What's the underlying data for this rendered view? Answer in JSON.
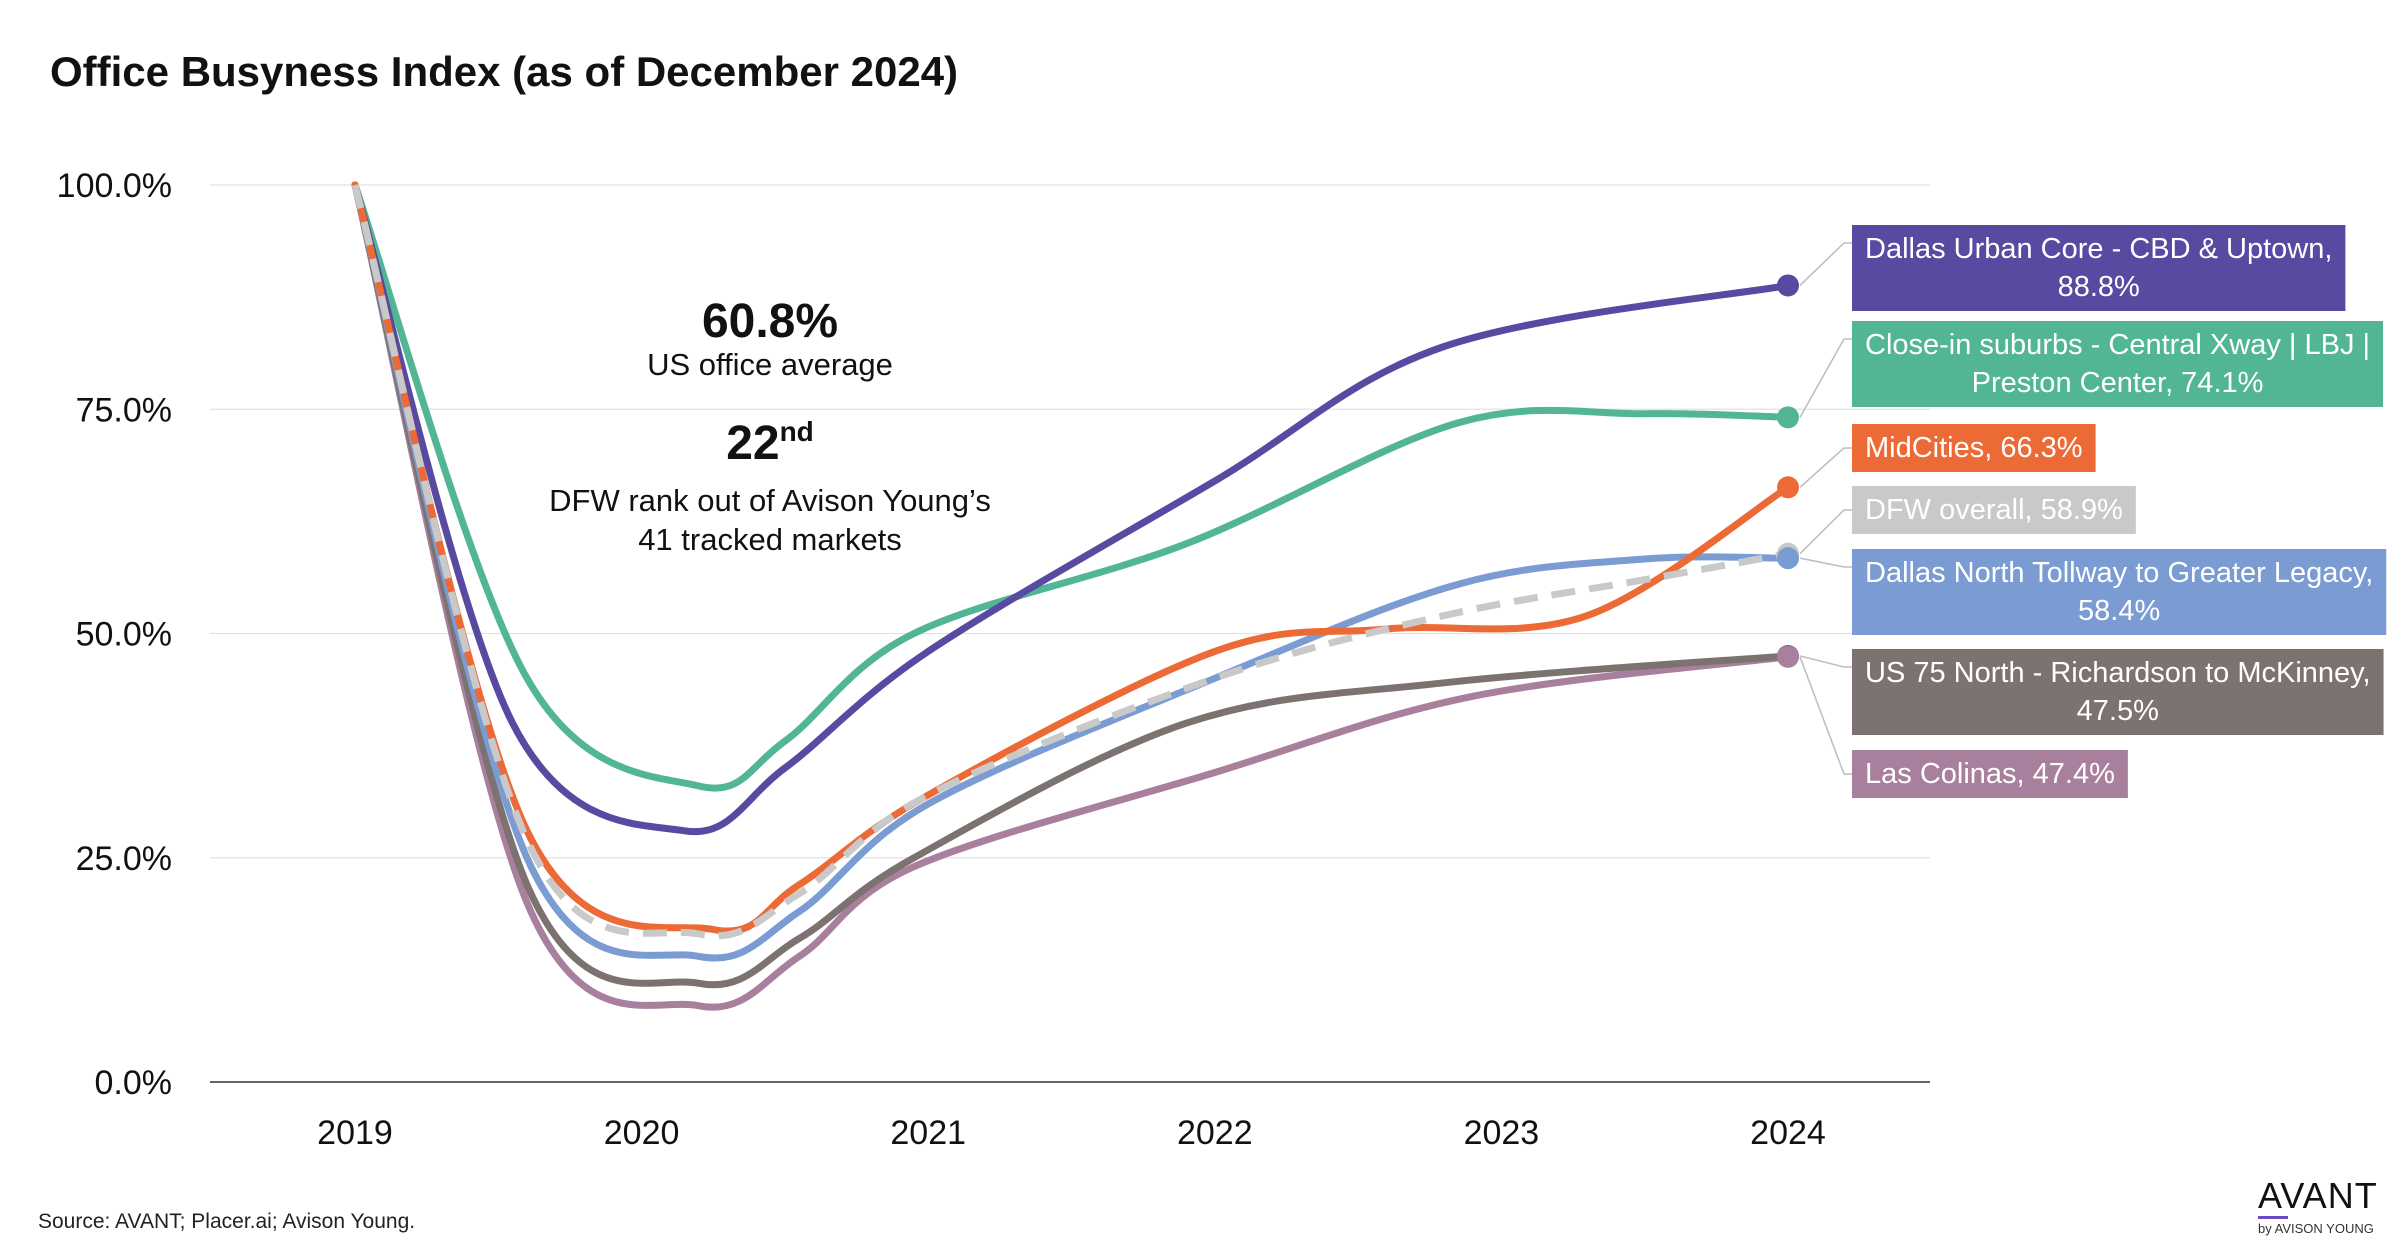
{
  "title": "Office Busyness Index (as of December 2024)",
  "source": "Source: AVANT; Placer.ai; Avison Young.",
  "annotation": {
    "us_value": "60.8%",
    "us_label": "US office average",
    "rank_value": "22",
    "rank_suffix": "nd",
    "rank_label_1": "DFW rank out of Avison Young’s",
    "rank_label_2": "41 tracked markets"
  },
  "logo": {
    "main": "AVANT",
    "sub": "by AVISON YOUNG"
  },
  "chart_data": {
    "type": "line",
    "title": "Office Busyness Index (as of December 2024)",
    "xlabel": "",
    "ylabel": "",
    "categories": [
      "2019",
      "2020",
      "2021",
      "2022",
      "2023",
      "2024"
    ],
    "x_range": [
      2019,
      2024
    ],
    "ylim": [
      0,
      100
    ],
    "y_ticks": [
      0,
      25,
      50,
      75,
      100
    ],
    "y_tick_labels": [
      "0.0%",
      "25.0%",
      "50.0%",
      "75.0%",
      "100.0%"
    ],
    "grid": true,
    "series": [
      {
        "name": "Dallas Urban Core - CBD & Uptown",
        "label_lines": [
          "Dallas Urban Core - CBD & Uptown,",
          "88.8%"
        ],
        "color": "#574aa0",
        "dashed": false,
        "end_value": 88.8,
        "points": [
          [
            2019,
            100
          ],
          [
            2019.55,
            40
          ],
          [
            2020.15,
            28
          ],
          [
            2020.5,
            35
          ],
          [
            2021,
            48
          ],
          [
            2022,
            67
          ],
          [
            2022.8,
            82
          ],
          [
            2024,
            88.8
          ]
        ]
      },
      {
        "name": "Close-in suburbs - Central Xway | LBJ | Preston Center",
        "label_lines": [
          "Close-in suburbs - Central Xway | LBJ |",
          "Preston Center, 74.1%"
        ],
        "color": "#52b596",
        "dashed": false,
        "end_value": 74.1,
        "points": [
          [
            2019,
            100
          ],
          [
            2019.6,
            45
          ],
          [
            2020.2,
            33
          ],
          [
            2020.5,
            38
          ],
          [
            2020.95,
            50
          ],
          [
            2021.9,
            60
          ],
          [
            2022.85,
            73.5
          ],
          [
            2023.5,
            74.5
          ],
          [
            2024,
            74.1
          ]
        ]
      },
      {
        "name": "MidCities",
        "label_lines": [
          "MidCities, 66.3%"
        ],
        "color": "#ec6a36",
        "dashed": false,
        "end_value": 66.3,
        "points": [
          [
            2019,
            100
          ],
          [
            2019.6,
            28
          ],
          [
            2020.25,
            17
          ],
          [
            2020.55,
            22
          ],
          [
            2021,
            32
          ],
          [
            2022,
            48
          ],
          [
            2022.6,
            50.5
          ],
          [
            2023.3,
            52
          ],
          [
            2024,
            66.3
          ]
        ]
      },
      {
        "name": "DFW overall",
        "label_lines": [
          "DFW overall, 58.9%"
        ],
        "color": "#c9c9c9",
        "dashed": true,
        "end_value": 58.9,
        "points": [
          [
            2019,
            100
          ],
          [
            2019.6,
            27
          ],
          [
            2020.2,
            16.5
          ],
          [
            2020.55,
            21
          ],
          [
            2021,
            32
          ],
          [
            2022,
            45
          ],
          [
            2022.8,
            52
          ],
          [
            2023.5,
            56
          ],
          [
            2024,
            58.9
          ]
        ]
      },
      {
        "name": "Dallas North Tollway to Greater Legacy",
        "label_lines": [
          "Dallas North Tollway to Greater Legacy,",
          "58.4%"
        ],
        "color": "#7b9bd3",
        "dashed": false,
        "end_value": 58.4,
        "points": [
          [
            2019,
            100
          ],
          [
            2019.6,
            25
          ],
          [
            2020.2,
            14
          ],
          [
            2020.55,
            19
          ],
          [
            2021,
            31
          ],
          [
            2022,
            45
          ],
          [
            2022.85,
            55.5
          ],
          [
            2023.5,
            58.3
          ],
          [
            2024,
            58.4
          ]
        ]
      },
      {
        "name": "US 75 North - Richardson to McKinney",
        "label_lines": [
          "US 75 North - Richardson to McKinney,",
          "47.5%"
        ],
        "color": "#7c7270",
        "dashed": false,
        "end_value": 47.5,
        "points": [
          [
            2019,
            100
          ],
          [
            2019.6,
            22
          ],
          [
            2020.2,
            11
          ],
          [
            2020.55,
            16
          ],
          [
            2020.95,
            25
          ],
          [
            2021.9,
            40
          ],
          [
            2022.8,
            44.5
          ],
          [
            2024,
            47.5
          ]
        ]
      },
      {
        "name": "Las Colinas",
        "label_lines": [
          "Las Colinas, 47.4%"
        ],
        "color": "#a97f9e",
        "dashed": false,
        "end_value": 47.4,
        "points": [
          [
            2019,
            100
          ],
          [
            2019.6,
            20
          ],
          [
            2020.2,
            8.5
          ],
          [
            2020.55,
            14
          ],
          [
            2020.95,
            24
          ],
          [
            2022,
            34.5
          ],
          [
            2022.9,
            43
          ],
          [
            2024,
            47.4
          ]
        ]
      }
    ]
  }
}
